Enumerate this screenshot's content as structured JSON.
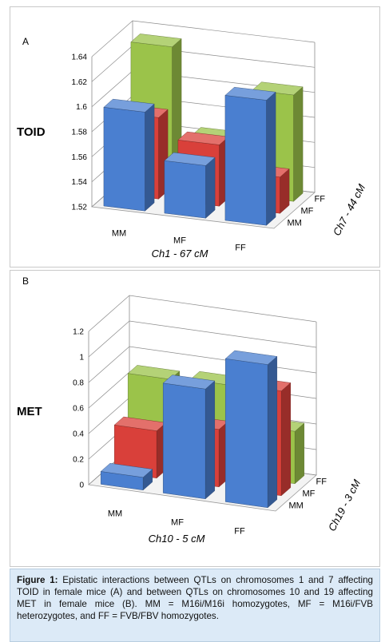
{
  "chart_data": [
    {
      "type": "bar3d",
      "panel": "A",
      "zlabel": "TOID",
      "xlabel": "Ch1 - 67 cM",
      "ylabel": "Ch7 - 44 cM",
      "x_categories": [
        "MM",
        "MF",
        "FF"
      ],
      "y_categories": [
        "MM",
        "MF",
        "FF"
      ],
      "zlim": [
        1.52,
        1.64
      ],
      "z_ticks": [
        "1.52",
        "1.54",
        "1.56",
        "1.58",
        "1.6",
        "1.62",
        "1.64"
      ],
      "series": [
        {
          "name": "MM",
          "color": "#4a7fd0",
          "values": [
            1.599,
            1.562,
            1.62
          ]
        },
        {
          "name": "MF",
          "color": "#d9403a",
          "values": [
            1.585,
            1.569,
            1.549
          ]
        },
        {
          "name": "FF",
          "color": "#9bc34a",
          "values": [
            1.632,
            1.563,
            1.605
          ]
        }
      ]
    },
    {
      "type": "bar3d",
      "panel": "B",
      "zlabel": "MET",
      "xlabel": "Ch10 - 5 cM",
      "ylabel": "Ch19 - 3 cM",
      "x_categories": [
        "MM",
        "MF",
        "FF"
      ],
      "y_categories": [
        "MM",
        "MF",
        "FF"
      ],
      "zlim": [
        0,
        1.2
      ],
      "z_ticks": [
        "0",
        "0.2",
        "0.4",
        "0.6",
        "0.8",
        "1",
        "1.2"
      ],
      "series": [
        {
          "name": "MM",
          "color": "#4a7fd0",
          "values": [
            0.1,
            0.86,
            1.12
          ]
        },
        {
          "name": "MF",
          "color": "#d9403a",
          "values": [
            0.37,
            0.45,
            0.82
          ]
        },
        {
          "name": "FF",
          "color": "#9bc34a",
          "values": [
            0.68,
            0.7,
            0.41
          ]
        }
      ]
    }
  ],
  "caption": {
    "bold": "Figure 1:",
    "text": " Epistatic interactions between QTLs on chromosomes 1 and 7 affecting TOID in female mice (A) and between QTLs on chromosomes 10 and 19 affecting MET in female mice (B). MM = M16i/M16i homozygotes, MF = M16i/FVB heterozygotes, and FF = FVB/FBV homozygotes."
  }
}
